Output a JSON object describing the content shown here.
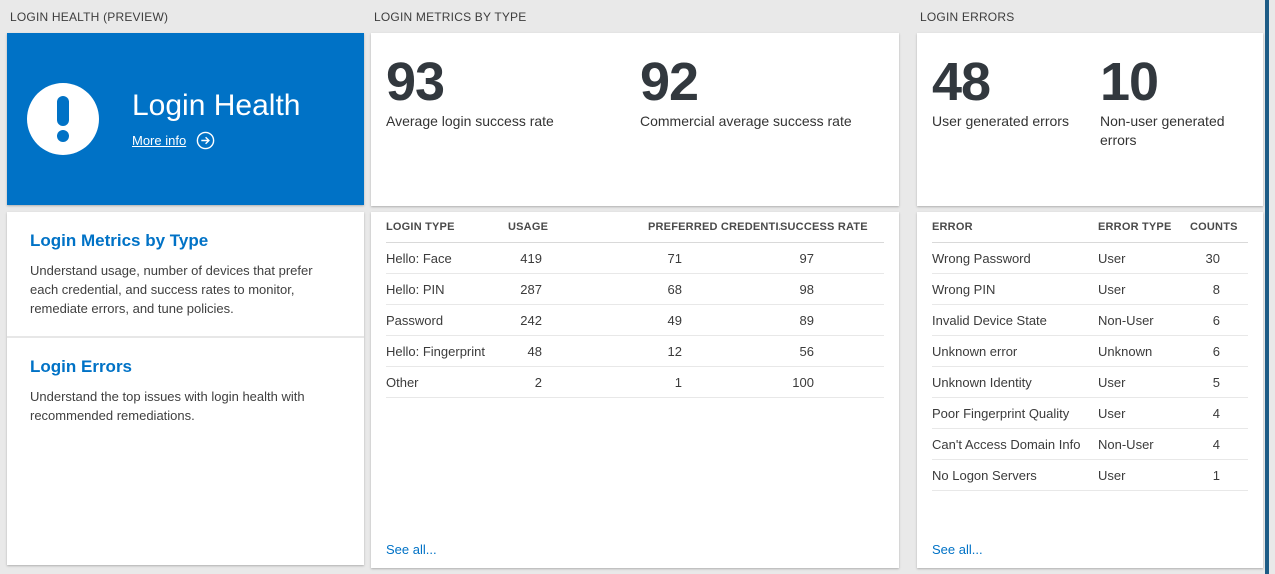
{
  "colors": {
    "accent_blue": "#0072c6",
    "page_background": "#e9e9e9",
    "edge_stripe": "#1d5c86"
  },
  "sections": {
    "login_health": {
      "header": "LOGIN HEALTH (PREVIEW)",
      "hero": {
        "title": "Login Health",
        "more_info_label": "More info",
        "icon": "exclamation-icon"
      },
      "links": [
        {
          "title": "Login Metrics by Type",
          "description": "Understand usage, number of devices that prefer each credential, and success rates to monitor, remediate errors, and tune policies."
        },
        {
          "title": "Login Errors",
          "description": "Understand the top issues with login health with recommended remediations."
        }
      ]
    },
    "login_metrics": {
      "header": "LOGIN METRICS BY TYPE",
      "stats": [
        {
          "value": "93",
          "label": "Average login success rate"
        },
        {
          "value": "92",
          "label": "Commercial average success rate"
        }
      ],
      "table": {
        "columns": [
          "LOGIN TYPE",
          "USAGE",
          "PREFERRED CREDENTIAL",
          "SUCCESS RATE"
        ],
        "rows": [
          [
            "Hello: Face",
            "419",
            "71",
            "97"
          ],
          [
            "Hello: PIN",
            "287",
            "68",
            "98"
          ],
          [
            "Password",
            "242",
            "49",
            "89"
          ],
          [
            "Hello: Fingerprint",
            "48",
            "12",
            "56"
          ],
          [
            "Other",
            "2",
            "1",
            "100"
          ]
        ]
      },
      "see_all": "See all..."
    },
    "login_errors": {
      "header": "LOGIN ERRORS",
      "stats": [
        {
          "value": "48",
          "label": "User generated errors"
        },
        {
          "value": "10",
          "label": "Non-user generated errors"
        }
      ],
      "table": {
        "columns": [
          "ERROR",
          "ERROR TYPE",
          "COUNTS"
        ],
        "rows": [
          [
            "Wrong Password",
            "User",
            "30"
          ],
          [
            "Wrong PIN",
            "User",
            "8"
          ],
          [
            "Invalid Device State",
            "Non-User",
            "6"
          ],
          [
            "Unknown error",
            "Unknown",
            "6"
          ],
          [
            "Unknown Identity",
            "User",
            "5"
          ],
          [
            "Poor Fingerprint Quality",
            "User",
            "4"
          ],
          [
            "Can't Access Domain Info",
            "Non-User",
            "4"
          ],
          [
            "No Logon Servers",
            "User",
            "1"
          ]
        ]
      },
      "see_all": "See all..."
    }
  }
}
